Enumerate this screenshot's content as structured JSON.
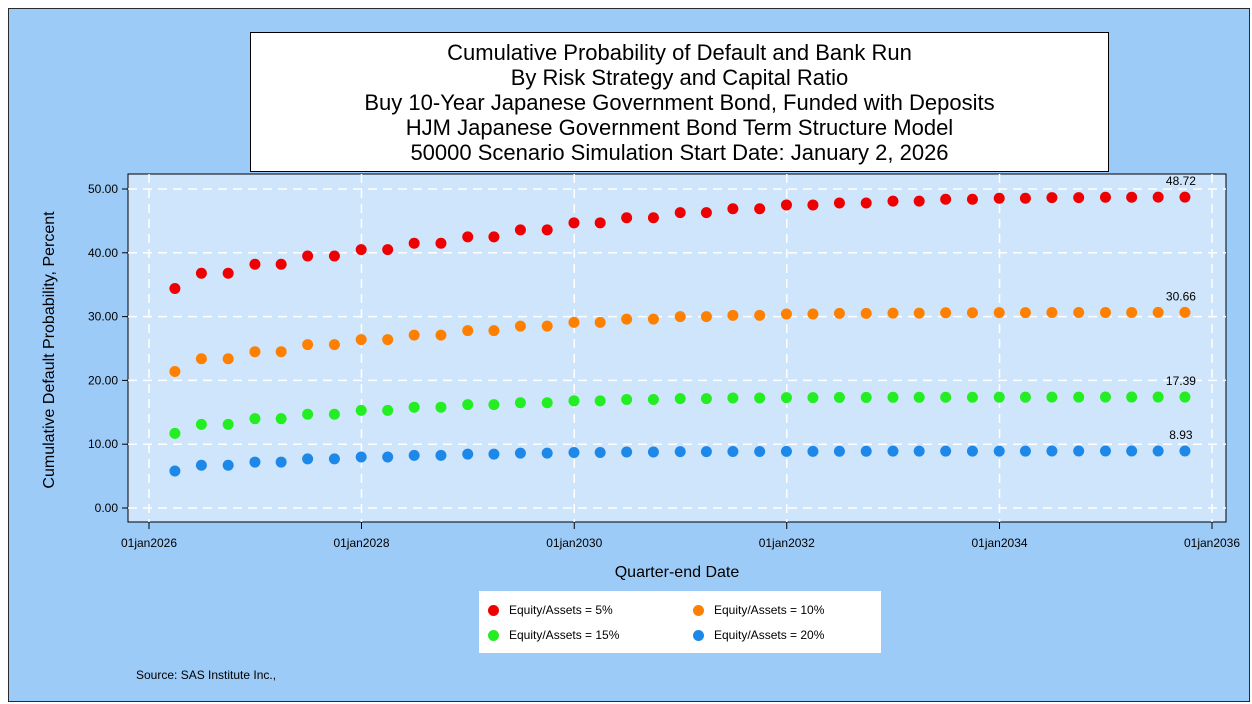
{
  "chart_data": {
    "type": "scatter",
    "title_lines": [
      "Cumulative Probability of Default and Bank Run",
      "By Risk Strategy and Capital Ratio",
      "Buy 10-Year Japanese Government Bond, Funded with Deposits",
      "HJM Japanese Government Bond Term Structure Model",
      "50000 Scenario Simulation Start Date: January 2, 2026"
    ],
    "xlabel": "Quarter-end Date",
    "ylabel": "Cumulative Default Probability, Percent",
    "x_ticks": [
      "01jan2026",
      "01jan2028",
      "01jan2030",
      "01jan2032",
      "01jan2034",
      "01jan2036"
    ],
    "y_ticks": [
      "0.00",
      "10.00",
      "20.00",
      "30.00",
      "40.00",
      "50.00"
    ],
    "ylim": [
      0,
      50
    ],
    "grid": true,
    "legend_position": "bottom",
    "x": [
      "2026-03-31",
      "2026-06-30",
      "2026-09-30",
      "2026-12-31",
      "2027-03-31",
      "2027-06-30",
      "2027-09-30",
      "2027-12-31",
      "2028-03-31",
      "2028-06-30",
      "2028-09-30",
      "2028-12-31",
      "2029-03-31",
      "2029-06-30",
      "2029-09-30",
      "2029-12-31",
      "2030-03-31",
      "2030-06-30",
      "2030-09-30",
      "2030-12-31",
      "2031-03-31",
      "2031-06-30",
      "2031-09-30",
      "2031-12-31",
      "2032-03-31",
      "2032-06-30",
      "2032-09-30",
      "2032-12-31",
      "2033-03-31",
      "2033-06-30",
      "2033-09-30",
      "2033-12-31",
      "2034-03-31",
      "2034-06-30",
      "2034-09-30",
      "2034-12-31",
      "2035-03-31",
      "2035-06-30",
      "2035-09-30"
    ],
    "series": [
      {
        "name": "Equity/Assets = 5%",
        "color": "#ee0000",
        "end_label": "48.72",
        "values": [
          34.4,
          36.8,
          36.8,
          38.2,
          38.2,
          39.5,
          39.5,
          40.5,
          40.5,
          41.5,
          41.5,
          42.5,
          42.5,
          43.6,
          43.6,
          44.7,
          44.7,
          45.5,
          45.5,
          46.3,
          46.3,
          46.9,
          46.9,
          47.5,
          47.5,
          47.8,
          47.8,
          48.1,
          48.1,
          48.4,
          48.4,
          48.55,
          48.55,
          48.65,
          48.65,
          48.7,
          48.7,
          48.72,
          48.72
        ]
      },
      {
        "name": "Equity/Assets = 10%",
        "color": "#ff8000",
        "end_label": "30.66",
        "values": [
          21.4,
          23.4,
          23.4,
          24.5,
          24.5,
          25.6,
          25.6,
          26.4,
          26.4,
          27.1,
          27.1,
          27.8,
          27.8,
          28.5,
          28.5,
          29.1,
          29.1,
          29.6,
          29.6,
          30.0,
          30.0,
          30.2,
          30.2,
          30.4,
          30.4,
          30.5,
          30.5,
          30.55,
          30.55,
          30.6,
          30.6,
          30.62,
          30.62,
          30.64,
          30.64,
          30.65,
          30.65,
          30.66,
          30.66
        ]
      },
      {
        "name": "Equity/Assets = 15%",
        "color": "#22ee22",
        "end_label": "17.39",
        "values": [
          11.7,
          13.1,
          13.1,
          14.0,
          14.0,
          14.7,
          14.7,
          15.3,
          15.3,
          15.8,
          15.8,
          16.2,
          16.2,
          16.5,
          16.5,
          16.8,
          16.8,
          17.0,
          17.0,
          17.15,
          17.15,
          17.25,
          17.25,
          17.3,
          17.3,
          17.33,
          17.33,
          17.35,
          17.35,
          17.36,
          17.36,
          17.37,
          17.37,
          17.38,
          17.38,
          17.39,
          17.39,
          17.39,
          17.39
        ]
      },
      {
        "name": "Equity/Assets = 20%",
        "color": "#1e88e8",
        "end_label": "8.93",
        "values": [
          5.8,
          6.7,
          6.7,
          7.2,
          7.2,
          7.7,
          7.7,
          8.0,
          8.0,
          8.25,
          8.25,
          8.45,
          8.45,
          8.6,
          8.6,
          8.7,
          8.7,
          8.78,
          8.78,
          8.83,
          8.83,
          8.86,
          8.86,
          8.88,
          8.88,
          8.9,
          8.9,
          8.91,
          8.91,
          8.92,
          8.92,
          8.92,
          8.92,
          8.93,
          8.93,
          8.93,
          8.93,
          8.93,
          8.93
        ]
      }
    ]
  },
  "source_note": "Source: SAS Institute Inc.,"
}
